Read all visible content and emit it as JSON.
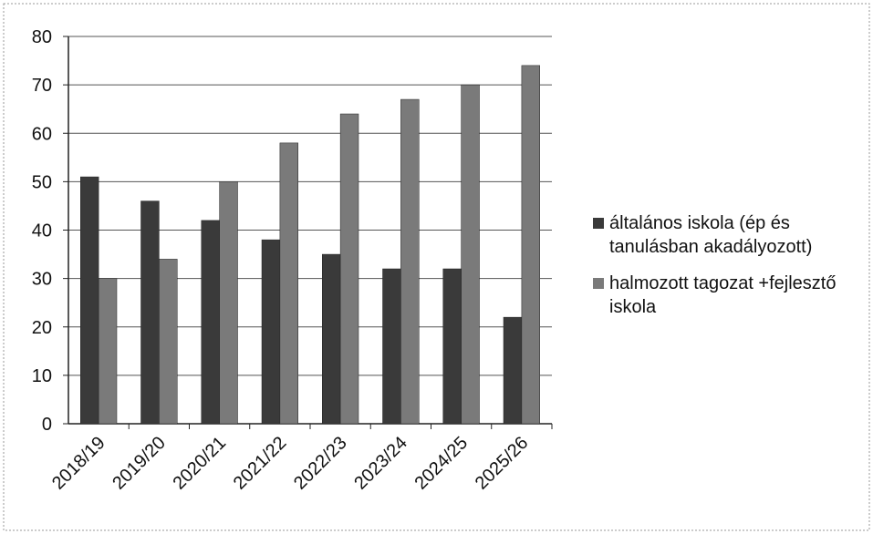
{
  "chart_data": {
    "type": "bar",
    "categories": [
      "2018/19",
      "2019/20",
      "2020/21",
      "2021/22",
      "2022/23",
      "2023/24",
      "2024/25",
      "2025/26"
    ],
    "series": [
      {
        "name": "általános iskola (ép és tanulásban akadályozott)",
        "color": "#3a3a3a",
        "values": [
          51,
          46,
          42,
          38,
          35,
          32,
          32,
          22
        ]
      },
      {
        "name": "halmozott tagozat +fejlesztő iskola",
        "color": "#7a7a7a",
        "values": [
          30,
          34,
          50,
          58,
          64,
          67,
          70,
          74
        ]
      }
    ],
    "ylim": [
      0,
      80
    ],
    "yticks": [
      0,
      10,
      20,
      30,
      40,
      50,
      60,
      70,
      80
    ],
    "grid": true,
    "legend": "right"
  }
}
